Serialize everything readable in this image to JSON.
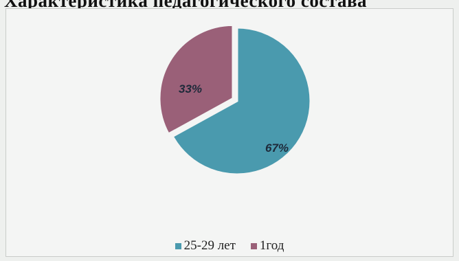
{
  "page": {
    "title": "Характеристика педагогического состава"
  },
  "chart_data": {
    "type": "pie",
    "title": "",
    "slices": [
      {
        "label": "25-29 лет",
        "value": 67,
        "display": "67%",
        "color": "#4a9aae"
      },
      {
        "label": "1год",
        "value": 33,
        "display": "33%",
        "color": "#9a6078"
      }
    ],
    "legend": "bottom"
  }
}
